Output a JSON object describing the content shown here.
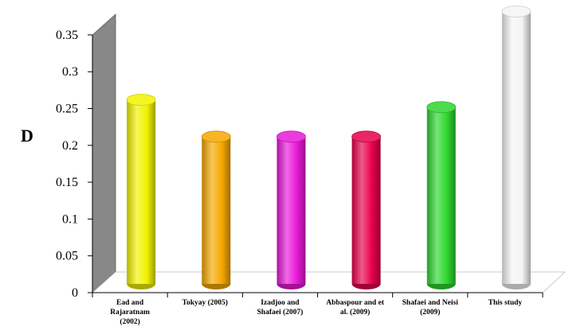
{
  "chart_data": {
    "type": "bar",
    "style": "3d-cylinder",
    "ylabel": "D",
    "xlabel": "",
    "ylim": [
      0,
      0.35
    ],
    "y_ticks": [
      "0",
      "0.05",
      "0.1",
      "0.15",
      "0.2",
      "0.25",
      "0.3",
      "0.35"
    ],
    "y_tick_values": [
      0,
      0.05,
      0.1,
      0.15,
      0.2,
      0.25,
      0.3,
      0.35
    ],
    "grid": false,
    "legend": "none",
    "categories": [
      [
        "Ead and",
        "Rajaratnam",
        "(2002)"
      ],
      [
        "Tokyay (2005)"
      ],
      [
        "Izadjoo and",
        "Shafaei (2007)"
      ],
      [
        "Abbaspour and et",
        "al. (2009)"
      ],
      [
        "Shafaei and Neisi",
        "(2009)"
      ],
      [
        "This study"
      ]
    ],
    "values": [
      0.25,
      0.2,
      0.2,
      0.2,
      0.24,
      0.37
    ],
    "colors": [
      "#f2f200",
      "#f5a800",
      "#e818d8",
      "#e8004a",
      "#2ed62e",
      "#f4f4f4"
    ]
  }
}
